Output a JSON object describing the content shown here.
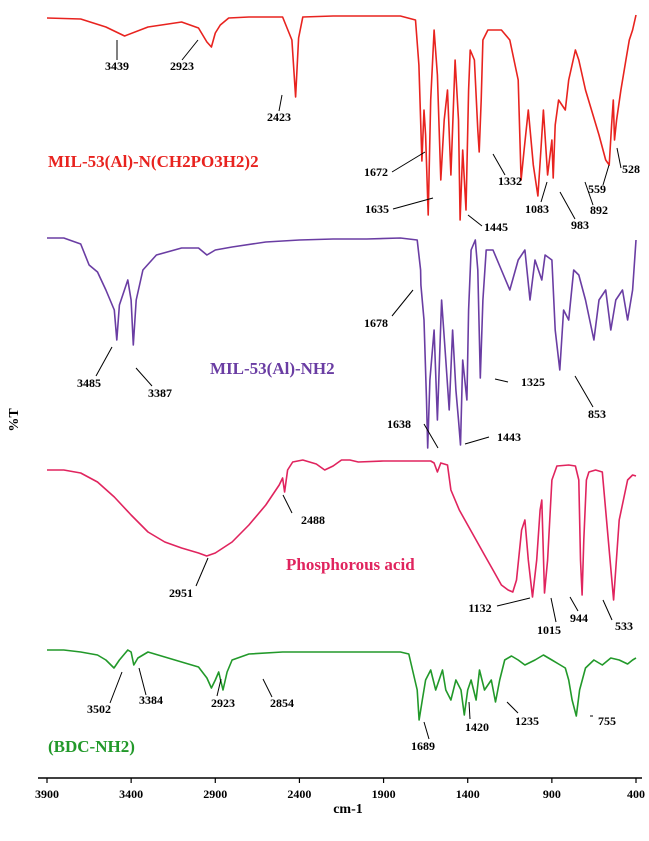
{
  "chart_data": {
    "type": "line",
    "xlabel": "cm-1",
    "ylabel": "%T",
    "xlim": [
      3900,
      400
    ],
    "x_reversed": true,
    "x_ticks": [
      3900,
      3400,
      2900,
      2400,
      1900,
      1400,
      900,
      400
    ],
    "y_ticks_shown": false,
    "grid": false,
    "series": [
      {
        "name": "MIL-53(Al)-N(CH2PO3H2)2",
        "color": "#e8231f",
        "points": [
          [
            3900,
            18
          ],
          [
            3700,
            19
          ],
          [
            3550,
            27
          ],
          [
            3439,
            36
          ],
          [
            3300,
            27
          ],
          [
            3100,
            22
          ],
          [
            3000,
            28
          ],
          [
            2950,
            42
          ],
          [
            2923,
            47
          ],
          [
            2900,
            33
          ],
          [
            2870,
            25
          ],
          [
            2820,
            18
          ],
          [
            2700,
            17
          ],
          [
            2500,
            17
          ],
          [
            2445,
            40
          ],
          [
            2423,
            97
          ],
          [
            2405,
            38
          ],
          [
            2380,
            17
          ],
          [
            2200,
            16
          ],
          [
            2000,
            16
          ],
          [
            1800,
            16
          ],
          [
            1710,
            20
          ],
          [
            1690,
            65
          ],
          [
            1672,
            161
          ],
          [
            1660,
            110
          ],
          [
            1650,
            135
          ],
          [
            1635,
            215
          ],
          [
            1620,
            100
          ],
          [
            1600,
            30
          ],
          [
            1580,
            75
          ],
          [
            1560,
            180
          ],
          [
            1540,
            120
          ],
          [
            1520,
            90
          ],
          [
            1500,
            175
          ],
          [
            1475,
            60
          ],
          [
            1455,
            120
          ],
          [
            1445,
            220
          ],
          [
            1430,
            150
          ],
          [
            1410,
            210
          ],
          [
            1395,
            90
          ],
          [
            1385,
            50
          ],
          [
            1360,
            60
          ],
          [
            1340,
            130
          ],
          [
            1332,
            152
          ],
          [
            1320,
            100
          ],
          [
            1310,
            40
          ],
          [
            1280,
            30
          ],
          [
            1200,
            30
          ],
          [
            1150,
            40
          ],
          [
            1100,
            80
          ],
          [
            1083,
            180
          ],
          [
            1065,
            150
          ],
          [
            1040,
            110
          ],
          [
            1010,
            165
          ],
          [
            983,
            196
          ],
          [
            965,
            150
          ],
          [
            950,
            110
          ],
          [
            925,
            175
          ],
          [
            900,
            140
          ],
          [
            892,
            178
          ],
          [
            880,
            125
          ],
          [
            860,
            100
          ],
          [
            820,
            110
          ],
          [
            800,
            80
          ],
          [
            760,
            50
          ],
          [
            740,
            60
          ],
          [
            700,
            90
          ],
          [
            620,
            135
          ],
          [
            580,
            160
          ],
          [
            559,
            165
          ],
          [
            545,
            125
          ],
          [
            535,
            100
          ],
          [
            528,
            140
          ],
          [
            515,
            120
          ],
          [
            490,
            90
          ],
          [
            460,
            60
          ],
          [
            440,
            40
          ],
          [
            420,
            30
          ],
          [
            400,
            15
          ]
        ],
        "peak_labels": [
          "3439",
          "2923",
          "2423",
          "1672",
          "1635",
          "1445",
          "1332",
          "1083",
          "983",
          "892",
          "559",
          "528"
        ]
      },
      {
        "name": "MIL-53(Al)-NH2",
        "color": "#6a3da3",
        "points": [
          [
            3900,
            238
          ],
          [
            3800,
            238
          ],
          [
            3700,
            244
          ],
          [
            3650,
            265
          ],
          [
            3600,
            272
          ],
          [
            3550,
            290
          ],
          [
            3500,
            310
          ],
          [
            3485,
            340
          ],
          [
            3470,
            305
          ],
          [
            3420,
            280
          ],
          [
            3400,
            300
          ],
          [
            3387,
            345
          ],
          [
            3370,
            300
          ],
          [
            3330,
            270
          ],
          [
            3250,
            255
          ],
          [
            3100,
            248
          ],
          [
            3000,
            248
          ],
          [
            2950,
            255
          ],
          [
            2900,
            250
          ],
          [
            2800,
            247
          ],
          [
            2600,
            242
          ],
          [
            2400,
            240
          ],
          [
            2200,
            239
          ],
          [
            2000,
            239
          ],
          [
            1800,
            238
          ],
          [
            1700,
            240
          ],
          [
            1680,
            270
          ],
          [
            1678,
            285
          ],
          [
            1660,
            320
          ],
          [
            1645,
            400
          ],
          [
            1638,
            448
          ],
          [
            1625,
            380
          ],
          [
            1600,
            330
          ],
          [
            1580,
            420
          ],
          [
            1555,
            300
          ],
          [
            1530,
            360
          ],
          [
            1510,
            410
          ],
          [
            1490,
            330
          ],
          [
            1470,
            390
          ],
          [
            1455,
            420
          ],
          [
            1443,
            445
          ],
          [
            1430,
            360
          ],
          [
            1405,
            400
          ],
          [
            1395,
            310
          ],
          [
            1380,
            250
          ],
          [
            1355,
            240
          ],
          [
            1340,
            270
          ],
          [
            1325,
            378
          ],
          [
            1310,
            300
          ],
          [
            1290,
            250
          ],
          [
            1250,
            250
          ],
          [
            1200,
            270
          ],
          [
            1150,
            290
          ],
          [
            1100,
            260
          ],
          [
            1060,
            250
          ],
          [
            1030,
            300
          ],
          [
            1000,
            260
          ],
          [
            960,
            280
          ],
          [
            940,
            255
          ],
          [
            900,
            260
          ],
          [
            880,
            330
          ],
          [
            853,
            370
          ],
          [
            830,
            310
          ],
          [
            800,
            320
          ],
          [
            770,
            270
          ],
          [
            740,
            275
          ],
          [
            700,
            300
          ],
          [
            650,
            340
          ],
          [
            620,
            300
          ],
          [
            580,
            290
          ],
          [
            550,
            330
          ],
          [
            520,
            300
          ],
          [
            480,
            290
          ],
          [
            450,
            320
          ],
          [
            420,
            290
          ],
          [
            400,
            240
          ]
        ],
        "peak_labels": [
          "3485",
          "3387",
          "1678",
          "1638",
          "1443",
          "1325",
          "853"
        ]
      },
      {
        "name": "Phosphorous acid",
        "color": "#e0245e",
        "points": [
          [
            3900,
            470
          ],
          [
            3800,
            470
          ],
          [
            3700,
            473
          ],
          [
            3600,
            482
          ],
          [
            3500,
            497
          ],
          [
            3400,
            515
          ],
          [
            3300,
            532
          ],
          [
            3200,
            542
          ],
          [
            3100,
            548
          ],
          [
            3000,
            553
          ],
          [
            2951,
            556
          ],
          [
            2900,
            553
          ],
          [
            2800,
            542
          ],
          [
            2700,
            525
          ],
          [
            2600,
            505
          ],
          [
            2520,
            485
          ],
          [
            2500,
            478
          ],
          [
            2488,
            492
          ],
          [
            2470,
            470
          ],
          [
            2440,
            462
          ],
          [
            2380,
            460
          ],
          [
            2300,
            464
          ],
          [
            2250,
            470
          ],
          [
            2200,
            466
          ],
          [
            2150,
            460
          ],
          [
            2100,
            460
          ],
          [
            2050,
            462
          ],
          [
            1900,
            461
          ],
          [
            1800,
            461
          ],
          [
            1700,
            461
          ],
          [
            1620,
            461
          ],
          [
            1600,
            463
          ],
          [
            1580,
            472
          ],
          [
            1560,
            463
          ],
          [
            1520,
            465
          ],
          [
            1500,
            490
          ],
          [
            1450,
            510
          ],
          [
            1400,
            525
          ],
          [
            1350,
            540
          ],
          [
            1300,
            555
          ],
          [
            1250,
            570
          ],
          [
            1200,
            585
          ],
          [
            1160,
            590
          ],
          [
            1132,
            592
          ],
          [
            1110,
            580
          ],
          [
            1080,
            530
          ],
          [
            1060,
            520
          ],
          [
            1040,
            560
          ],
          [
            1015,
            597
          ],
          [
            990,
            560
          ],
          [
            970,
            510
          ],
          [
            960,
            500
          ],
          [
            944,
            593
          ],
          [
            925,
            560
          ],
          [
            900,
            480
          ],
          [
            870,
            466
          ],
          [
            800,
            465
          ],
          [
            760,
            466
          ],
          [
            740,
            480
          ],
          [
            730,
            560
          ],
          [
            720,
            595
          ],
          [
            710,
            540
          ],
          [
            695,
            480
          ],
          [
            680,
            472
          ],
          [
            640,
            470
          ],
          [
            600,
            472
          ],
          [
            533,
            600
          ],
          [
            500,
            520
          ],
          [
            450,
            480
          ],
          [
            420,
            475
          ],
          [
            400,
            476
          ]
        ],
        "peak_labels": [
          "2951",
          "2488",
          "1132",
          "1015",
          "944",
          "533"
        ]
      },
      {
        "name": "(BDC-NH2)",
        "color": "#22992a",
        "points": [
          [
            3900,
            650
          ],
          [
            3800,
            650
          ],
          [
            3700,
            652
          ],
          [
            3600,
            655
          ],
          [
            3550,
            660
          ],
          [
            3502,
            668
          ],
          [
            3470,
            660
          ],
          [
            3420,
            650
          ],
          [
            3400,
            652
          ],
          [
            3384,
            665
          ],
          [
            3360,
            658
          ],
          [
            3300,
            652
          ],
          [
            3200,
            657
          ],
          [
            3100,
            662
          ],
          [
            3000,
            667
          ],
          [
            2950,
            678
          ],
          [
            2923,
            688
          ],
          [
            2900,
            680
          ],
          [
            2880,
            672
          ],
          [
            2854,
            690
          ],
          [
            2830,
            672
          ],
          [
            2800,
            660
          ],
          [
            2700,
            654
          ],
          [
            2500,
            652
          ],
          [
            2300,
            652
          ],
          [
            2100,
            652
          ],
          [
            1900,
            652
          ],
          [
            1800,
            652
          ],
          [
            1750,
            654
          ],
          [
            1700,
            690
          ],
          [
            1689,
            720
          ],
          [
            1670,
            700
          ],
          [
            1650,
            680
          ],
          [
            1620,
            670
          ],
          [
            1590,
            690
          ],
          [
            1550,
            670
          ],
          [
            1530,
            690
          ],
          [
            1500,
            700
          ],
          [
            1470,
            680
          ],
          [
            1440,
            690
          ],
          [
            1420,
            715
          ],
          [
            1400,
            690
          ],
          [
            1380,
            680
          ],
          [
            1350,
            700
          ],
          [
            1330,
            670
          ],
          [
            1300,
            690
          ],
          [
            1260,
            680
          ],
          [
            1235,
            702
          ],
          [
            1210,
            680
          ],
          [
            1180,
            660
          ],
          [
            1140,
            656
          ],
          [
            1100,
            660
          ],
          [
            1060,
            665
          ],
          [
            1000,
            660
          ],
          [
            950,
            655
          ],
          [
            900,
            660
          ],
          [
            860,
            664
          ],
          [
            820,
            668
          ],
          [
            800,
            680
          ],
          [
            780,
            700
          ],
          [
            755,
            716
          ],
          [
            735,
            690
          ],
          [
            700,
            668
          ],
          [
            650,
            660
          ],
          [
            600,
            665
          ],
          [
            550,
            658
          ],
          [
            500,
            660
          ],
          [
            450,
            664
          ],
          [
            420,
            660
          ],
          [
            400,
            658
          ]
        ],
        "peak_labels": [
          "3502",
          "3384",
          "2923",
          "2854",
          "1689",
          "1420",
          "1235",
          "755"
        ]
      }
    ]
  }
}
